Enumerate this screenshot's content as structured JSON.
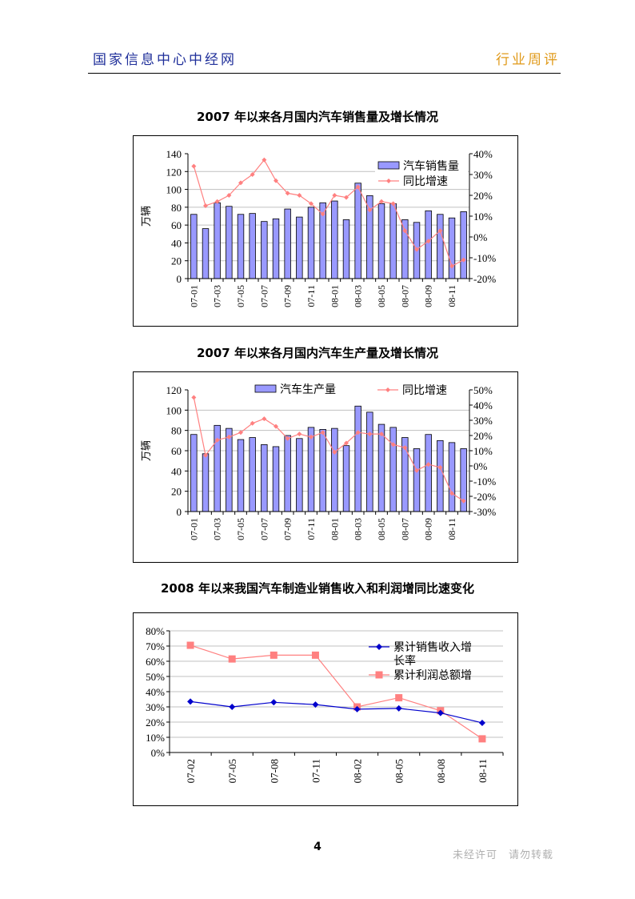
{
  "header": {
    "left": "国家信息中心中经网",
    "right": "行业周评"
  },
  "chart1": {
    "title": "2007 年以来各月国内汽车销售量及增长情况",
    "ylabel": "万辆",
    "legend": [
      "汽车销售量",
      "同比增速"
    ],
    "yticks": [
      "140",
      "120",
      "100",
      "80",
      "60",
      "40",
      "20",
      "0"
    ],
    "y2ticks": [
      "40%",
      "30%",
      "20%",
      "10%",
      "0%",
      "-10%",
      "-20%"
    ],
    "xticks": [
      "07-01",
      "07-03",
      "07-05",
      "07-07",
      "07-09",
      "07-11",
      "08-01",
      "08-03",
      "08-05",
      "08-07",
      "08-09",
      "08-11"
    ]
  },
  "chart2": {
    "title": "2007 年以来各月国内汽车生产量及增长情况",
    "ylabel": "万辆",
    "legend": [
      "汽车生产量",
      "同比增速"
    ],
    "yticks": [
      "120",
      "100",
      "80",
      "60",
      "40",
      "20",
      "0"
    ],
    "y2ticks": [
      "50%",
      "40%",
      "30%",
      "20%",
      "10%",
      "0%",
      "-10%",
      "-20%",
      "-30%"
    ],
    "xticks": [
      "07-01",
      "07-03",
      "07-05",
      "07-07",
      "07-09",
      "07-11",
      "08-01",
      "08-03",
      "08-05",
      "08-07",
      "08-09",
      "08-11"
    ]
  },
  "chart3": {
    "title": "2008 年以来我国汽车制造业销售收入和利润增同比速变化",
    "legend1": [
      "累计销售收入增",
      "长率"
    ],
    "legend2": "累计利润总额增",
    "yticks": [
      "80%",
      "70%",
      "60%",
      "50%",
      "40%",
      "30%",
      "20%",
      "10%",
      "0%"
    ],
    "xticks": [
      "07-02",
      "07-05",
      "07-08",
      "07-11",
      "08-02",
      "08-05",
      "08-08",
      "08-11"
    ]
  },
  "chart_data": [
    {
      "type": "bar",
      "title": "2007 年以来各月国内汽车销售量及增长情况",
      "ylabel": "万辆",
      "ylim": [
        0,
        140
      ],
      "y2lim": [
        -20,
        40
      ],
      "categories": [
        "07-01",
        "07-02",
        "07-03",
        "07-04",
        "07-05",
        "07-06",
        "07-07",
        "07-08",
        "07-09",
        "07-10",
        "07-11",
        "07-12",
        "08-01",
        "08-02",
        "08-03",
        "08-04",
        "08-05",
        "08-06",
        "08-07",
        "08-08",
        "08-09",
        "08-10",
        "08-11",
        "08-12"
      ],
      "series": [
        {
          "name": "汽车销售量",
          "values": [
            72,
            56,
            85,
            81,
            72,
            73,
            64,
            67,
            78,
            69,
            80,
            85,
            87,
            66,
            107,
            93,
            84,
            84,
            66,
            63,
            76,
            72,
            68,
            75
          ]
        },
        {
          "name": "同比增速",
          "values": [
            34,
            15,
            17,
            20,
            26,
            30,
            37,
            27,
            21,
            20,
            16,
            11,
            20,
            19,
            24,
            13,
            17,
            16,
            3,
            -6,
            -2,
            3,
            -14,
            -11
          ]
        }
      ]
    },
    {
      "type": "bar",
      "title": "2007 年以来各月国内汽车生产量及增长情况",
      "ylabel": "万辆",
      "ylim": [
        0,
        120
      ],
      "y2lim": [
        -30,
        50
      ],
      "categories": [
        "07-01",
        "07-02",
        "07-03",
        "07-04",
        "07-05",
        "07-06",
        "07-07",
        "07-08",
        "07-09",
        "07-10",
        "07-11",
        "07-12",
        "08-01",
        "08-02",
        "08-03",
        "08-04",
        "08-05",
        "08-06",
        "08-07",
        "08-08",
        "08-09",
        "08-10",
        "08-11",
        "08-12"
      ],
      "series": [
        {
          "name": "汽车生产量",
          "values": [
            76,
            57,
            85,
            82,
            71,
            73,
            66,
            64,
            75,
            72,
            83,
            81,
            82,
            65,
            104,
            98,
            86,
            83,
            73,
            62,
            76,
            70,
            68,
            62
          ]
        },
        {
          "name": "同比增速",
          "values": [
            45,
            7,
            17,
            19,
            22,
            28,
            31,
            26,
            18,
            21,
            19,
            22,
            9,
            15,
            22,
            21,
            21,
            14,
            12,
            -3,
            1,
            -1,
            -18,
            -23
          ]
        }
      ]
    },
    {
      "type": "line",
      "title": "2008 年以来我国汽车制造业销售收入和利润增同比速变化",
      "ylim": [
        0,
        80
      ],
      "categories": [
        "07-02",
        "07-05",
        "07-08",
        "07-11",
        "08-02",
        "08-05",
        "08-08",
        "08-11"
      ],
      "series": [
        {
          "name": "累计销售收入增长率",
          "values": [
            33.5,
            30,
            33,
            31.5,
            28.5,
            29,
            26,
            19.5
          ]
        },
        {
          "name": "累计利润总额增",
          "values": [
            70.5,
            61.5,
            64,
            64,
            30,
            36,
            27.5,
            9
          ]
        }
      ]
    }
  ],
  "page_number": "4",
  "footer_note": "未经许可　请勿转载"
}
